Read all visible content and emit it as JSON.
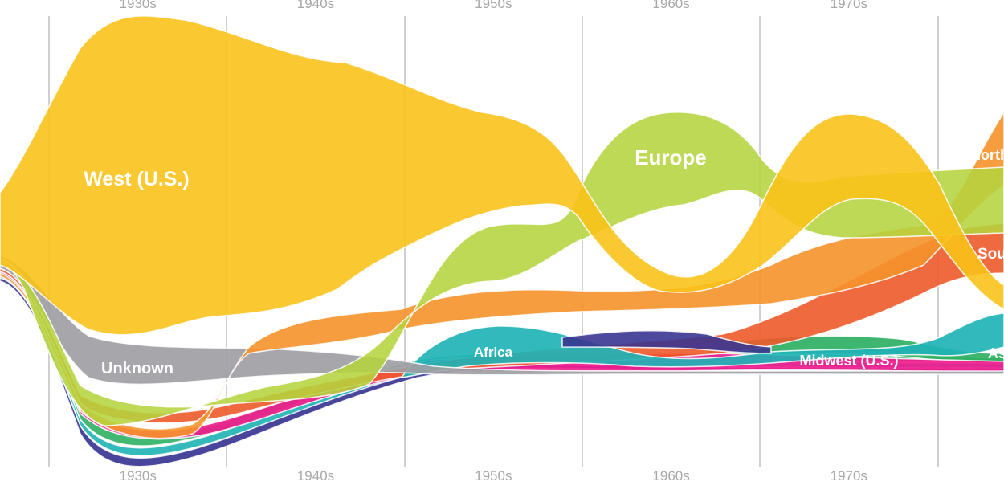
{
  "chart_data": {
    "type": "area",
    "subtype": "streamgraph",
    "title": "",
    "xlabel": "",
    "ylabel": "",
    "decades": [
      "1930s",
      "1940s",
      "1950s",
      "1960s",
      "1970s"
    ],
    "labelled_series": [
      {
        "name": "West (U.S.)",
        "color": "#f9c21a"
      },
      {
        "name": "Europe",
        "color": "#b5d43d"
      },
      {
        "name": "Unknown",
        "color": "#9e9ea4"
      },
      {
        "name": "Africa",
        "color": "#1fb3b5"
      },
      {
        "name": "Midwest (U.S.)",
        "color": "#f01d8e"
      },
      {
        "name": "North",
        "color": "#f5922a"
      },
      {
        "name": "South",
        "color": "#ee5a2b"
      },
      {
        "name": "Asia",
        "color": "#2fb063"
      }
    ],
    "other_series_colors": [
      "#3a3591"
    ],
    "label_texts": {
      "west": "West (U.S.)",
      "europe": "Europe",
      "unknown": "Unknown",
      "africa": "Africa",
      "midwest": "Midwest (U.S.)",
      "north": "North",
      "south": "South",
      "asia": "Asia"
    }
  }
}
